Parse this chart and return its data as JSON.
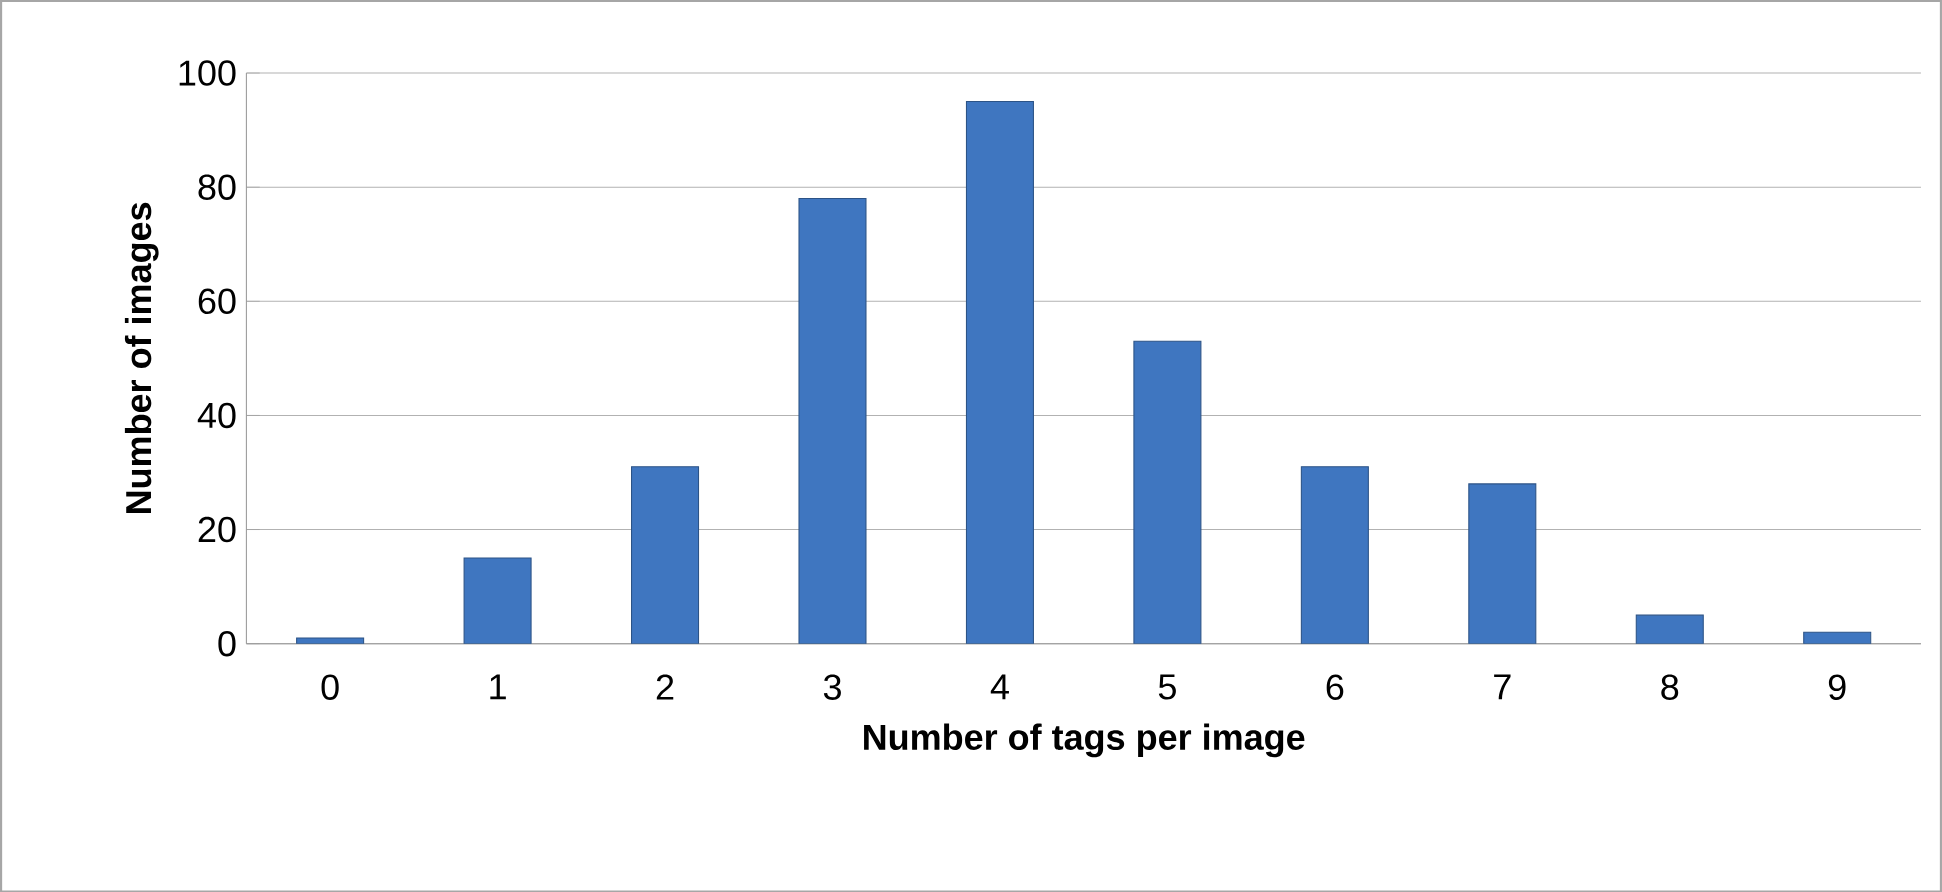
{
  "chart_data": {
    "type": "bar",
    "xlabel": "Number of tags per image",
    "ylabel": "Number of images",
    "categories": [
      "0",
      "1",
      "2",
      "3",
      "4",
      "5",
      "6",
      "7",
      "8",
      "9"
    ],
    "values": [
      1,
      15,
      31,
      78,
      95,
      53,
      31,
      28,
      5,
      2
    ],
    "color": "#3f76c0",
    "ylim": [
      0,
      100
    ],
    "yticks": [
      0,
      20,
      40,
      60,
      80,
      100
    ],
    "grid": "y"
  }
}
